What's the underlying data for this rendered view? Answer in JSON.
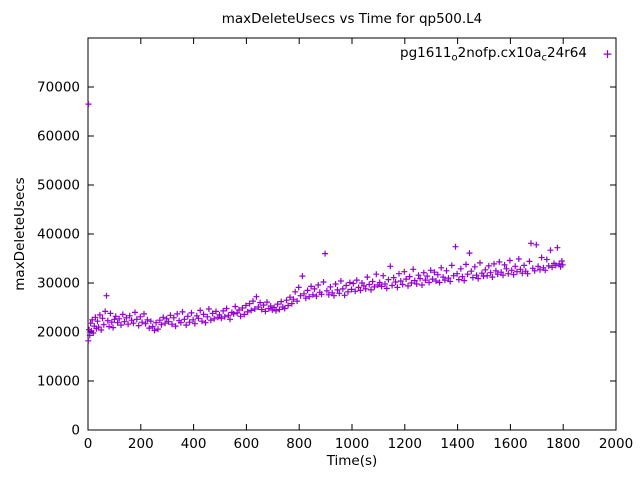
{
  "chart": {
    "title": "maxDeleteUsecs vs Time for qp500.L4",
    "xlabel": "Time(s)",
    "ylabel": "maxDeleteUsecs",
    "legend": {
      "parts": [
        "pg1611",
        "o",
        "2nofp.cx10a",
        "c",
        "24r64"
      ],
      "marker": "+"
    }
  },
  "chart_data": {
    "type": "scatter",
    "title": "maxDeleteUsecs vs Time for qp500.L4",
    "xlabel": "Time(s)",
    "ylabel": "maxDeleteUsecs",
    "xlim": [
      0,
      2000
    ],
    "ylim": [
      0,
      80000
    ],
    "x_ticks": [
      0,
      200,
      400,
      600,
      800,
      1000,
      1200,
      1400,
      1600,
      1800,
      2000
    ],
    "y_ticks": [
      0,
      10000,
      20000,
      30000,
      40000,
      50000,
      60000,
      70000
    ],
    "grid": false,
    "legend_position": "top-right-inside",
    "marker": "plus",
    "series": [
      {
        "name": "pg1611_o2nofp.cx10a_c24r64",
        "color": "#9400D3",
        "points": [
          [
            1,
            18200
          ],
          [
            2,
            66500
          ],
          [
            4,
            20500
          ],
          [
            7,
            19300
          ],
          [
            10,
            21800
          ],
          [
            13,
            20200
          ],
          [
            16,
            22500
          ],
          [
            20,
            19800
          ],
          [
            24,
            21200
          ],
          [
            28,
            23000
          ],
          [
            32,
            20700
          ],
          [
            36,
            22200
          ],
          [
            40,
            21000
          ],
          [
            45,
            23500
          ],
          [
            50,
            20400
          ],
          [
            55,
            22800
          ],
          [
            60,
            21500
          ],
          [
            65,
            24200
          ],
          [
            70,
            27400
          ],
          [
            75,
            22300
          ],
          [
            80,
            21100
          ],
          [
            85,
            23800
          ],
          [
            90,
            22000
          ],
          [
            95,
            20900
          ],
          [
            100,
            22600
          ],
          [
            105,
            23200
          ],
          [
            112,
            21900
          ],
          [
            118,
            22700
          ],
          [
            125,
            21400
          ],
          [
            132,
            23600
          ],
          [
            138,
            22100
          ],
          [
            145,
            22900
          ],
          [
            152,
            21600
          ],
          [
            158,
            23300
          ],
          [
            165,
            22400
          ],
          [
            172,
            21800
          ],
          [
            178,
            24000
          ],
          [
            185,
            22600
          ],
          [
            192,
            21300
          ],
          [
            198,
            23100
          ],
          [
            205,
            22000
          ],
          [
            212,
            23700
          ],
          [
            218,
            21700
          ],
          [
            225,
            22500
          ],
          [
            232,
            20800
          ],
          [
            238,
            22200
          ],
          [
            245,
            21100
          ],
          [
            252,
            20300
          ],
          [
            258,
            21900
          ],
          [
            265,
            20600
          ],
          [
            272,
            22400
          ],
          [
            278,
            21500
          ],
          [
            285,
            23000
          ],
          [
            292,
            21800
          ],
          [
            298,
            22700
          ],
          [
            305,
            22100
          ],
          [
            312,
            23400
          ],
          [
            318,
            21600
          ],
          [
            325,
            22900
          ],
          [
            332,
            21200
          ],
          [
            338,
            23700
          ],
          [
            345,
            22300
          ],
          [
            352,
            21900
          ],
          [
            358,
            24100
          ],
          [
            365,
            22600
          ],
          [
            372,
            21400
          ],
          [
            378,
            23200
          ],
          [
            385,
            22000
          ],
          [
            392,
            23900
          ],
          [
            398,
            22500
          ],
          [
            405,
            21700
          ],
          [
            412,
            23300
          ],
          [
            418,
            22800
          ],
          [
            425,
            24400
          ],
          [
            432,
            22200
          ],
          [
            438,
            23600
          ],
          [
            445,
            21900
          ],
          [
            452,
            23100
          ],
          [
            458,
            24700
          ],
          [
            465,
            22400
          ],
          [
            472,
            23800
          ],
          [
            478,
            22700
          ],
          [
            485,
            24200
          ],
          [
            492,
            23000
          ],
          [
            498,
            23500
          ],
          [
            505,
            22800
          ],
          [
            512,
            24300
          ],
          [
            518,
            23100
          ],
          [
            525,
            24800
          ],
          [
            532,
            23400
          ],
          [
            538,
            22600
          ],
          [
            545,
            24000
          ],
          [
            552,
            23700
          ],
          [
            558,
            25200
          ],
          [
            565,
            23900
          ],
          [
            572,
            24500
          ],
          [
            578,
            23200
          ],
          [
            585,
            24900
          ],
          [
            592,
            23600
          ],
          [
            598,
            25400
          ],
          [
            605,
            24100
          ],
          [
            612,
            25800
          ],
          [
            618,
            24400
          ],
          [
            625,
            26300
          ],
          [
            632,
            24700
          ],
          [
            638,
            27200
          ],
          [
            645,
            25100
          ],
          [
            652,
            26000
          ],
          [
            658,
            24600
          ],
          [
            665,
            25500
          ],
          [
            672,
            24200
          ],
          [
            678,
            26100
          ],
          [
            685,
            24800
          ],
          [
            692,
            25300
          ],
          [
            698,
            24500
          ],
          [
            705,
            25000
          ],
          [
            712,
            24300
          ],
          [
            718,
            25700
          ],
          [
            725,
            24600
          ],
          [
            732,
            26200
          ],
          [
            738,
            25100
          ],
          [
            745,
            24800
          ],
          [
            752,
            26500
          ],
          [
            758,
            25400
          ],
          [
            765,
            27100
          ],
          [
            772,
            25800
          ],
          [
            778,
            26700
          ],
          [
            785,
            28200
          ],
          [
            792,
            26300
          ],
          [
            798,
            29100
          ],
          [
            805,
            27400
          ],
          [
            812,
            31400
          ],
          [
            818,
            27800
          ],
          [
            825,
            26900
          ],
          [
            832,
            28500
          ],
          [
            838,
            27200
          ],
          [
            845,
            29300
          ],
          [
            852,
            27600
          ],
          [
            858,
            28800
          ],
          [
            865,
            27300
          ],
          [
            872,
            29600
          ],
          [
            878,
            28100
          ],
          [
            885,
            27700
          ],
          [
            892,
            30200
          ],
          [
            898,
            36000
          ],
          [
            905,
            28400
          ],
          [
            912,
            27600
          ],
          [
            918,
            29200
          ],
          [
            925,
            28000
          ],
          [
            932,
            27400
          ],
          [
            938,
            29800
          ],
          [
            945,
            28600
          ],
          [
            952,
            27900
          ],
          [
            958,
            30400
          ],
          [
            965,
            28800
          ],
          [
            972,
            27500
          ],
          [
            978,
            29500
          ],
          [
            985,
            28200
          ],
          [
            992,
            30100
          ],
          [
            998,
            28700
          ],
          [
            1005,
            29900
          ],
          [
            1012,
            28300
          ],
          [
            1018,
            30600
          ],
          [
            1025,
            29100
          ],
          [
            1032,
            28500
          ],
          [
            1038,
            30000
          ],
          [
            1045,
            29400
          ],
          [
            1052,
            28800
          ],
          [
            1058,
            31200
          ],
          [
            1065,
            29700
          ],
          [
            1072,
            28600
          ],
          [
            1078,
            30300
          ],
          [
            1085,
            29200
          ],
          [
            1092,
            31800
          ],
          [
            1098,
            29600
          ],
          [
            1105,
            30100
          ],
          [
            1112,
            29300
          ],
          [
            1118,
            31500
          ],
          [
            1125,
            29800
          ],
          [
            1132,
            28900
          ],
          [
            1138,
            30700
          ],
          [
            1145,
            33400
          ],
          [
            1152,
            29500
          ],
          [
            1158,
            31100
          ],
          [
            1165,
            30200
          ],
          [
            1172,
            29100
          ],
          [
            1178,
            31900
          ],
          [
            1185,
            30400
          ],
          [
            1192,
            29700
          ],
          [
            1198,
            32300
          ],
          [
            1205,
            30800
          ],
          [
            1212,
            29400
          ],
          [
            1218,
            31300
          ],
          [
            1225,
            30000
          ],
          [
            1232,
            32800
          ],
          [
            1238,
            30500
          ],
          [
            1245,
            29800
          ],
          [
            1252,
            31600
          ],
          [
            1258,
            30900
          ],
          [
            1265,
            29600
          ],
          [
            1272,
            32100
          ],
          [
            1278,
            30600
          ],
          [
            1285,
            31400
          ],
          [
            1292,
            30100
          ],
          [
            1298,
            32600
          ],
          [
            1305,
            30800
          ],
          [
            1312,
            32200
          ],
          [
            1318,
            30400
          ],
          [
            1325,
            31700
          ],
          [
            1332,
            30100
          ],
          [
            1338,
            33100
          ],
          [
            1345,
            31200
          ],
          [
            1352,
            30600
          ],
          [
            1358,
            32500
          ],
          [
            1365,
            31000
          ],
          [
            1372,
            30300
          ],
          [
            1378,
            33600
          ],
          [
            1385,
            31500
          ],
          [
            1392,
            37400
          ],
          [
            1398,
            31900
          ],
          [
            1405,
            30700
          ],
          [
            1412,
            32900
          ],
          [
            1418,
            31300
          ],
          [
            1425,
            30500
          ],
          [
            1432,
            33800
          ],
          [
            1438,
            31800
          ],
          [
            1445,
            36100
          ],
          [
            1452,
            32400
          ],
          [
            1458,
            31100
          ],
          [
            1465,
            33300
          ],
          [
            1472,
            31600
          ],
          [
            1478,
            30900
          ],
          [
            1485,
            34100
          ],
          [
            1492,
            32000
          ],
          [
            1498,
            31400
          ],
          [
            1505,
            32700
          ],
          [
            1512,
            31500
          ],
          [
            1518,
            33500
          ],
          [
            1525,
            32100
          ],
          [
            1532,
            31200
          ],
          [
            1538,
            33900
          ],
          [
            1545,
            32500
          ],
          [
            1552,
            31800
          ],
          [
            1558,
            34300
          ],
          [
            1565,
            32200
          ],
          [
            1572,
            31600
          ],
          [
            1578,
            33700
          ],
          [
            1585,
            32900
          ],
          [
            1592,
            31900
          ],
          [
            1598,
            34600
          ],
          [
            1605,
            32600
          ],
          [
            1612,
            31700
          ],
          [
            1618,
            33400
          ],
          [
            1625,
            32300
          ],
          [
            1632,
            34900
          ],
          [
            1638,
            32800
          ],
          [
            1645,
            32000
          ],
          [
            1652,
            33600
          ],
          [
            1658,
            32400
          ],
          [
            1665,
            31900
          ],
          [
            1672,
            34400
          ],
          [
            1678,
            38100
          ],
          [
            1685,
            33000
          ],
          [
            1692,
            32500
          ],
          [
            1698,
            37800
          ],
          [
            1705,
            33400
          ],
          [
            1712,
            32700
          ],
          [
            1718,
            35200
          ],
          [
            1725,
            33100
          ],
          [
            1732,
            32600
          ],
          [
            1738,
            34800
          ],
          [
            1745,
            33500
          ],
          [
            1752,
            36700
          ],
          [
            1758,
            33200
          ],
          [
            1765,
            34000
          ],
          [
            1772,
            33600
          ],
          [
            1778,
            37200
          ],
          [
            1785,
            33900
          ],
          [
            1790,
            33300
          ],
          [
            1795,
            34500
          ],
          [
            1798,
            33700
          ]
        ]
      }
    ]
  }
}
